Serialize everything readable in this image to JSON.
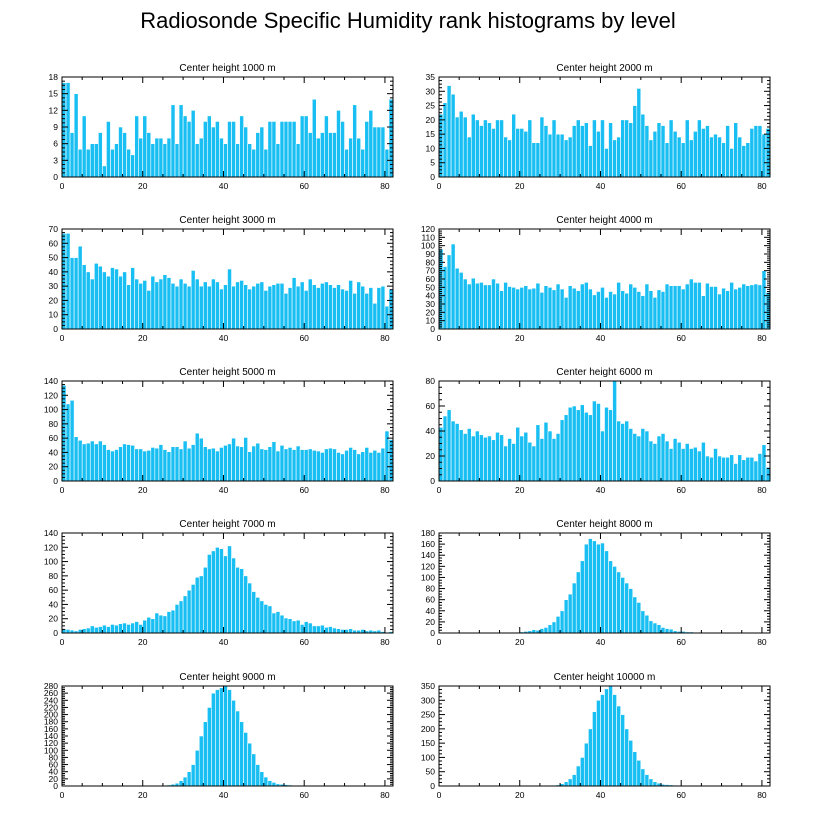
{
  "title": "Radiosonde Specific Humidity rank histograms by level",
  "colors": {
    "bar": "#19bff2",
    "axis": "#000000",
    "background": "#ffffff"
  },
  "chart_data": [
    {
      "type": "bar",
      "title": "Center height 1000 m",
      "xlim": [
        0,
        82
      ],
      "ylim": [
        0,
        18
      ],
      "xticks": [
        0,
        20,
        40,
        60,
        80
      ],
      "yticks": [
        0,
        3,
        6,
        9,
        12,
        15,
        18
      ],
      "values": [
        17,
        17,
        8,
        15,
        5,
        11,
        5,
        6,
        6,
        8,
        2,
        10,
        5,
        6,
        9,
        8,
        5,
        4,
        11,
        7,
        11,
        8,
        6,
        7,
        7,
        6,
        7,
        13,
        6,
        13,
        11,
        10,
        12,
        6,
        7,
        10,
        11,
        9,
        10,
        7,
        6,
        10,
        10,
        6,
        11,
        9,
        6,
        5,
        8,
        9,
        5,
        10,
        10,
        6,
        10,
        10,
        10,
        10,
        6,
        11,
        11,
        8,
        14,
        7,
        8,
        11,
        8,
        8,
        12,
        10,
        5,
        7,
        13,
        7,
        5,
        10,
        12,
        9,
        9,
        9,
        5,
        14
      ]
    },
    {
      "type": "bar",
      "title": "Center height 2000 m",
      "xlim": [
        0,
        82
      ],
      "ylim": [
        0,
        35
      ],
      "xticks": [
        0,
        20,
        40,
        60,
        80
      ],
      "yticks": [
        0,
        5,
        10,
        15,
        20,
        25,
        30,
        35
      ],
      "values": [
        22,
        26,
        32,
        29,
        21,
        23,
        21,
        14,
        22,
        20,
        18,
        20,
        19,
        17,
        20,
        20,
        14,
        13,
        22,
        17,
        17,
        16,
        20,
        12,
        12,
        21,
        18,
        15,
        20,
        15,
        15,
        13,
        14,
        18,
        20,
        18,
        19,
        11,
        20,
        16,
        20,
        10,
        19,
        13,
        14,
        20,
        20,
        19,
        25,
        31,
        22,
        18,
        13,
        16,
        19,
        18,
        12,
        20,
        16,
        14,
        12,
        20,
        13,
        16,
        20,
        17,
        18,
        14,
        15,
        14,
        12,
        18,
        10,
        19,
        14,
        11,
        12,
        17,
        18,
        18,
        15,
        17
      ]
    },
    {
      "type": "bar",
      "title": "Center height 3000 m",
      "xlim": [
        0,
        82
      ],
      "ylim": [
        0,
        70
      ],
      "xticks": [
        0,
        20,
        40,
        60,
        80
      ],
      "yticks": [
        0,
        10,
        20,
        30,
        40,
        50,
        60,
        70
      ],
      "values": [
        67,
        67,
        50,
        50,
        58,
        45,
        40,
        35,
        46,
        44,
        40,
        37,
        43,
        42,
        37,
        40,
        31,
        43,
        35,
        32,
        34,
        27,
        37,
        33,
        35,
        38,
        36,
        32,
        30,
        35,
        32,
        30,
        41,
        35,
        30,
        33,
        30,
        35,
        33,
        28,
        31,
        42,
        30,
        33,
        34,
        31,
        28,
        30,
        32,
        33,
        27,
        30,
        31,
        32,
        32,
        25,
        29,
        36,
        30,
        33,
        27,
        35,
        31,
        29,
        32,
        33,
        31,
        29,
        31,
        28,
        27,
        34,
        25,
        33,
        30,
        25,
        29,
        18,
        29,
        30,
        16,
        28
      ]
    },
    {
      "type": "bar",
      "title": "Center height 4000 m",
      "xlim": [
        0,
        82
      ],
      "ylim": [
        0,
        120
      ],
      "xticks": [
        0,
        20,
        40,
        60,
        80
      ],
      "yticks": [
        0,
        10,
        20,
        30,
        40,
        50,
        60,
        70,
        80,
        90,
        100,
        110,
        120
      ],
      "values": [
        96,
        75,
        89,
        102,
        73,
        68,
        60,
        54,
        61,
        55,
        56,
        53,
        53,
        60,
        55,
        46,
        56,
        51,
        50,
        48,
        50,
        52,
        48,
        49,
        55,
        44,
        52,
        50,
        47,
        54,
        48,
        38,
        52,
        49,
        46,
        54,
        56,
        48,
        41,
        45,
        50,
        38,
        45,
        42,
        56,
        46,
        43,
        54,
        50,
        45,
        40,
        54,
        46,
        38,
        47,
        45,
        54,
        52,
        52,
        52,
        48,
        54,
        60,
        56,
        56,
        40,
        55,
        51,
        51,
        42,
        49,
        46,
        56,
        48,
        50,
        54,
        52,
        53,
        54,
        53,
        70,
        44
      ]
    },
    {
      "type": "bar",
      "title": "Center height 5000 m",
      "xlim": [
        0,
        82
      ],
      "ylim": [
        0,
        140
      ],
      "xticks": [
        0,
        20,
        40,
        60,
        80
      ],
      "yticks": [
        0,
        20,
        40,
        60,
        80,
        100,
        120,
        140
      ],
      "values": [
        134,
        108,
        113,
        62,
        57,
        52,
        53,
        56,
        52,
        56,
        51,
        44,
        42,
        44,
        48,
        52,
        51,
        50,
        45,
        45,
        42,
        43,
        47,
        46,
        51,
        44,
        41,
        48,
        48,
        45,
        56,
        46,
        51,
        67,
        60,
        48,
        45,
        46,
        42,
        47,
        50,
        52,
        60,
        49,
        48,
        61,
        41,
        49,
        53,
        45,
        44,
        48,
        55,
        42,
        50,
        45,
        47,
        44,
        49,
        44,
        44,
        45,
        43,
        42,
        40,
        45,
        46,
        45,
        40,
        38,
        43,
        47,
        44,
        38,
        41,
        47,
        40,
        43,
        40,
        46,
        70,
        58
      ]
    },
    {
      "type": "bar",
      "title": "Center height 6000 m",
      "xlim": [
        0,
        82
      ],
      "ylim": [
        0,
        80
      ],
      "xticks": [
        0,
        20,
        40,
        60,
        80
      ],
      "yticks": [
        0,
        20,
        40,
        60,
        80
      ],
      "values": [
        43,
        52,
        57,
        48,
        46,
        41,
        38,
        42,
        36,
        40,
        37,
        35,
        36,
        33,
        39,
        37,
        28,
        34,
        30,
        43,
        36,
        39,
        31,
        28,
        45,
        34,
        47,
        40,
        34,
        38,
        49,
        53,
        59,
        60,
        57,
        61,
        55,
        53,
        64,
        62,
        40,
        59,
        57,
        80,
        48,
        46,
        48,
        42,
        38,
        36,
        42,
        40,
        32,
        30,
        36,
        38,
        32,
        26,
        34,
        31,
        26,
        30,
        26,
        27,
        24,
        31,
        20,
        19,
        26,
        20,
        19,
        19,
        21,
        14,
        21,
        17,
        19,
        19,
        16,
        22,
        29,
        11
      ]
    },
    {
      "type": "bar",
      "title": "Center height 7000 m",
      "xlim": [
        0,
        82
      ],
      "ylim": [
        0,
        140
      ],
      "xticks": [
        0,
        20,
        40,
        60,
        80
      ],
      "yticks": [
        0,
        20,
        40,
        60,
        80,
        100,
        120,
        140
      ],
      "values": [
        6,
        5,
        4,
        3,
        5,
        6,
        7,
        10,
        8,
        9,
        11,
        9,
        12,
        11,
        13,
        14,
        12,
        14,
        16,
        12,
        18,
        22,
        20,
        28,
        25,
        24,
        30,
        32,
        40,
        45,
        52,
        60,
        68,
        78,
        80,
        92,
        110,
        115,
        120,
        118,
        108,
        122,
        105,
        92,
        90,
        80,
        70,
        58,
        50,
        45,
        40,
        38,
        28,
        30,
        25,
        21,
        20,
        17,
        18,
        12,
        16,
        14,
        10,
        10,
        11,
        8,
        9,
        7,
        6,
        5,
        5,
        6,
        4,
        4,
        5,
        3,
        4,
        3,
        4,
        2,
        1,
        2
      ]
    },
    {
      "type": "bar",
      "title": "Center height 8000 m",
      "xlim": [
        0,
        82
      ],
      "ylim": [
        0,
        180
      ],
      "xticks": [
        0,
        20,
        40,
        60,
        80
      ],
      "yticks": [
        0,
        20,
        40,
        60,
        80,
        100,
        120,
        140,
        160,
        180
      ],
      "values": [
        0,
        0,
        0,
        0,
        0,
        0,
        0,
        0,
        0,
        0,
        0,
        0,
        0,
        0,
        0,
        0,
        0,
        0,
        1,
        1,
        2,
        3,
        4,
        6,
        5,
        8,
        10,
        15,
        20,
        30,
        40,
        60,
        70,
        90,
        110,
        130,
        160,
        170,
        166,
        160,
        162,
        148,
        130,
        120,
        110,
        100,
        90,
        80,
        65,
        55,
        40,
        32,
        22,
        18,
        15,
        10,
        8,
        7,
        4,
        3,
        3,
        2,
        2,
        1,
        1,
        0,
        0,
        0,
        0,
        0,
        0,
        0,
        0,
        0,
        0,
        0,
        0,
        0,
        0,
        0,
        0,
        0
      ]
    },
    {
      "type": "bar",
      "title": "Center height 9000 m",
      "xlim": [
        0,
        82
      ],
      "ylim": [
        0,
        280
      ],
      "xticks": [
        0,
        20,
        40,
        60,
        80
      ],
      "yticks": [
        0,
        20,
        40,
        60,
        80,
        100,
        120,
        140,
        160,
        180,
        200,
        220,
        240,
        260,
        280
      ],
      "values": [
        0,
        0,
        0,
        0,
        0,
        0,
        0,
        0,
        0,
        0,
        0,
        0,
        0,
        0,
        0,
        0,
        0,
        0,
        0,
        0,
        0,
        0,
        0,
        0,
        1,
        2,
        3,
        5,
        8,
        15,
        25,
        40,
        60,
        100,
        140,
        180,
        220,
        260,
        270,
        275,
        280,
        270,
        240,
        210,
        180,
        150,
        120,
        90,
        60,
        40,
        25,
        15,
        10,
        6,
        5,
        4,
        3,
        2,
        2,
        1,
        1,
        1,
        0,
        0,
        0,
        0,
        0,
        0,
        0,
        0,
        0,
        0,
        0,
        0,
        0,
        0,
        0,
        0,
        0,
        0,
        0,
        0
      ]
    },
    {
      "type": "bar",
      "title": "Center height 10000 m",
      "xlim": [
        0,
        82
      ],
      "ylim": [
        0,
        350
      ],
      "xticks": [
        0,
        20,
        40,
        60,
        80
      ],
      "yticks": [
        0,
        50,
        100,
        150,
        200,
        250,
        300,
        350
      ],
      "values": [
        0,
        0,
        0,
        0,
        0,
        0,
        0,
        0,
        0,
        0,
        0,
        0,
        0,
        0,
        0,
        0,
        0,
        0,
        0,
        0,
        0,
        0,
        0,
        0,
        0,
        0,
        0,
        1,
        2,
        4,
        8,
        15,
        25,
        40,
        70,
        100,
        150,
        200,
        260,
        300,
        320,
        340,
        350,
        320,
        280,
        250,
        200,
        160,
        120,
        90,
        60,
        40,
        25,
        15,
        10,
        6,
        5,
        4,
        3,
        2,
        2,
        1,
        1,
        0,
        0,
        0,
        0,
        0,
        0,
        0,
        0,
        0,
        0,
        0,
        0,
        0,
        0,
        0,
        0,
        0,
        0,
        0
      ]
    }
  ]
}
